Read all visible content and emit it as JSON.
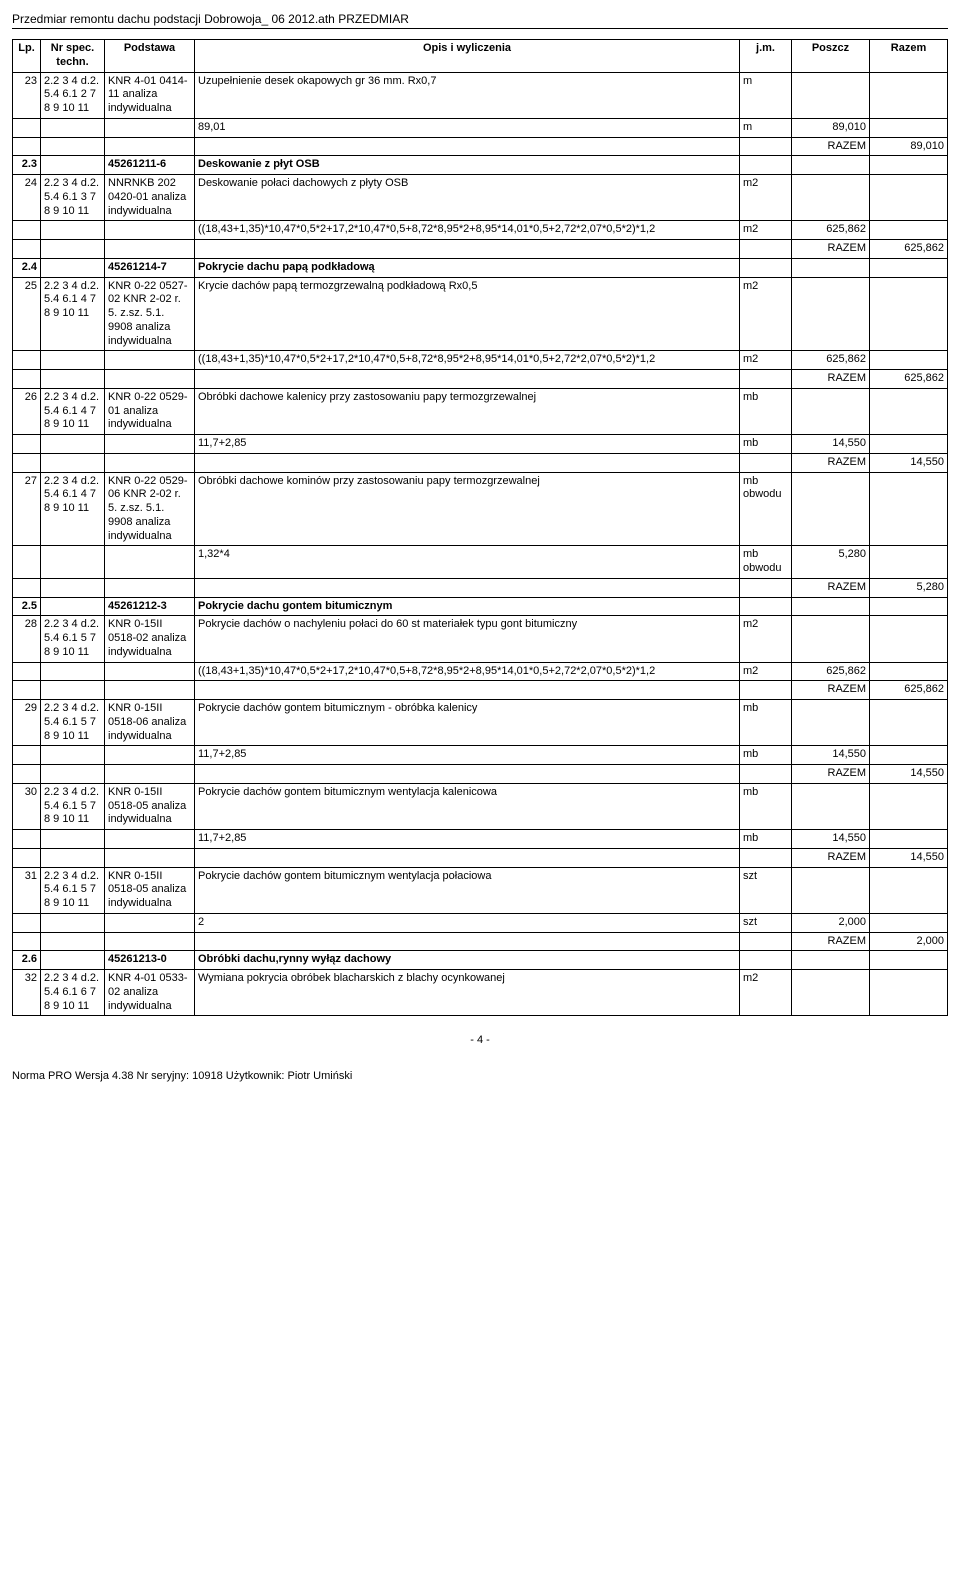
{
  "doc_title": "Przedmiar remontu dachu podstacji Dobrowoja_ 06 2012.ath PRZEDMIAR",
  "header": {
    "lp": "Lp.",
    "nr": "Nr spec. techn.",
    "podstawa": "Podstawa",
    "opis": "Opis i wyliczenia",
    "jm": "j.m.",
    "poszcz": "Poszcz",
    "razem": "Razem"
  },
  "rows": [
    {
      "type": "item",
      "lp": "23",
      "nr": "2.2 3 4 d.2. 5.4 6.1 2 7 8 9 10 11",
      "pod": "KNR 4-01 0414-11 analiza indywidualna",
      "opis": "Uzupełnienie desek okapowych gr 36 mm. Rx0,7",
      "jm": "m"
    },
    {
      "type": "calc",
      "opis": "89,01",
      "jm": "m",
      "posz": "89,010"
    },
    {
      "type": "razem",
      "val": "89,010"
    },
    {
      "type": "section",
      "lp": "2.3",
      "pod": "45261211-6",
      "opis": "Deskowanie z płyt OSB"
    },
    {
      "type": "item",
      "lp": "24",
      "nr": "2.2 3 4 d.2. 5.4 6.1 3 7 8 9 10 11",
      "pod": "NNRNKB 202 0420-01 analiza indywidualna",
      "opis": "Deskowanie połaci dachowych z płyty OSB",
      "jm": "m2"
    },
    {
      "type": "calc",
      "opis": "((18,43+1,35)*10,47*0,5*2+17,2*10,47*0,5+8,72*8,95*2+8,95*14,01*0,5+2,72*2,07*0,5*2)*1,2",
      "jm": "m2",
      "posz": "625,862"
    },
    {
      "type": "razem",
      "val": "625,862"
    },
    {
      "type": "section",
      "lp": "2.4",
      "pod": "45261214-7",
      "opis": "Pokrycie dachu papą podkładową"
    },
    {
      "type": "item",
      "lp": "25",
      "nr": "2.2 3 4 d.2. 5.4 6.1 4 7 8 9 10 11",
      "pod": "KNR 0-22 0527-02 KNR 2-02 r. 5. z.sz. 5.1. 9908 analiza indywidualna",
      "opis": "Krycie dachów papą termozgrzewalną podkładową Rx0,5",
      "jm": "m2"
    },
    {
      "type": "calc",
      "opis": "((18,43+1,35)*10,47*0,5*2+17,2*10,47*0,5+8,72*8,95*2+8,95*14,01*0,5+2,72*2,07*0,5*2)*1,2",
      "jm": "m2",
      "posz": "625,862"
    },
    {
      "type": "razem",
      "val": "625,862"
    },
    {
      "type": "item",
      "lp": "26",
      "nr": "2.2 3 4 d.2. 5.4 6.1 4 7 8 9 10 11",
      "pod": "KNR 0-22 0529-01 analiza indywidualna",
      "opis": "Obróbki dachowe kalenicy przy zastosowaniu papy termozgrzewalnej",
      "jm": "mb"
    },
    {
      "type": "calc",
      "opis": "11,7+2,85",
      "jm": "mb",
      "posz": "14,550"
    },
    {
      "type": "razem",
      "val": "14,550"
    },
    {
      "type": "item",
      "lp": "27",
      "nr": "2.2 3 4 d.2. 5.4 6.1 4 7 8 9 10 11",
      "pod": "KNR 0-22 0529-06 KNR 2-02 r. 5. z.sz. 5.1. 9908 analiza indywidualna",
      "opis": "Obróbki dachowe kominów przy zastosowaniu papy termozgrzewalnej",
      "jm": "mb obwodu"
    },
    {
      "type": "calc",
      "opis": "1,32*4",
      "jm": "mb obwodu",
      "posz": "5,280"
    },
    {
      "type": "razem",
      "val": "5,280"
    },
    {
      "type": "section",
      "lp": "2.5",
      "pod": "45261212-3",
      "opis": "Pokrycie dachu gontem bitumicznym"
    },
    {
      "type": "item",
      "lp": "28",
      "nr": "2.2 3 4 d.2. 5.4 6.1 5 7 8 9 10 11",
      "pod": "KNR 0-15II 0518-02 analiza indywidualna",
      "opis": "Pokrycie dachów o nachyleniu połaci do 60 st materiałek typu gont bitumiczny",
      "jm": "m2"
    },
    {
      "type": "calc",
      "opis": "((18,43+1,35)*10,47*0,5*2+17,2*10,47*0,5+8,72*8,95*2+8,95*14,01*0,5+2,72*2,07*0,5*2)*1,2",
      "jm": "m2",
      "posz": "625,862"
    },
    {
      "type": "razem",
      "val": "625,862"
    },
    {
      "type": "item",
      "lp": "29",
      "nr": "2.2 3 4 d.2. 5.4 6.1 5 7 8 9 10 11",
      "pod": "KNR 0-15II 0518-06 analiza indywidualna",
      "opis": "Pokrycie dachów gontem bitumicznym - obróbka kalenicy",
      "jm": "mb"
    },
    {
      "type": "calc",
      "opis": "11,7+2,85",
      "jm": "mb",
      "posz": "14,550"
    },
    {
      "type": "razem",
      "val": "14,550"
    },
    {
      "type": "item",
      "lp": "30",
      "nr": "2.2 3 4 d.2. 5.4 6.1 5 7 8 9 10 11",
      "pod": "KNR 0-15II 0518-05 analiza indywidualna",
      "opis": "Pokrycie dachów gontem bitumicznym wentylacja kalenicowa",
      "jm": "mb"
    },
    {
      "type": "calc",
      "opis": "11,7+2,85",
      "jm": "mb",
      "posz": "14,550"
    },
    {
      "type": "razem",
      "val": "14,550"
    },
    {
      "type": "item",
      "lp": "31",
      "nr": "2.2 3 4 d.2. 5.4 6.1 5 7 8 9 10 11",
      "pod": "KNR 0-15II 0518-05 analiza indywidualna",
      "opis": "Pokrycie dachów gontem bitumicznym wentylacja połaciowa",
      "jm": "szt"
    },
    {
      "type": "calc",
      "opis": "2",
      "jm": "szt",
      "posz": "2,000"
    },
    {
      "type": "razem",
      "val": "2,000"
    },
    {
      "type": "section",
      "lp": "2.6",
      "pod": "45261213-0",
      "opis": "Obróbki dachu,rynny wyłąz dachowy"
    },
    {
      "type": "item",
      "lp": "32",
      "nr": "2.2 3 4 d.2. 5.4 6.1 6 7 8 9 10 11",
      "pod": "KNR 4-01 0533-02 analiza indywidualna",
      "opis": "Wymiana pokrycia obróbek blacharskich z blachy ocynkowanej",
      "jm": "m2"
    }
  ],
  "razem_label": "RAZEM",
  "page_num": "- 4 -",
  "footer": "Norma PRO Wersja 4.38 Nr seryjny: 10918 Użytkownik: Piotr Umiński"
}
